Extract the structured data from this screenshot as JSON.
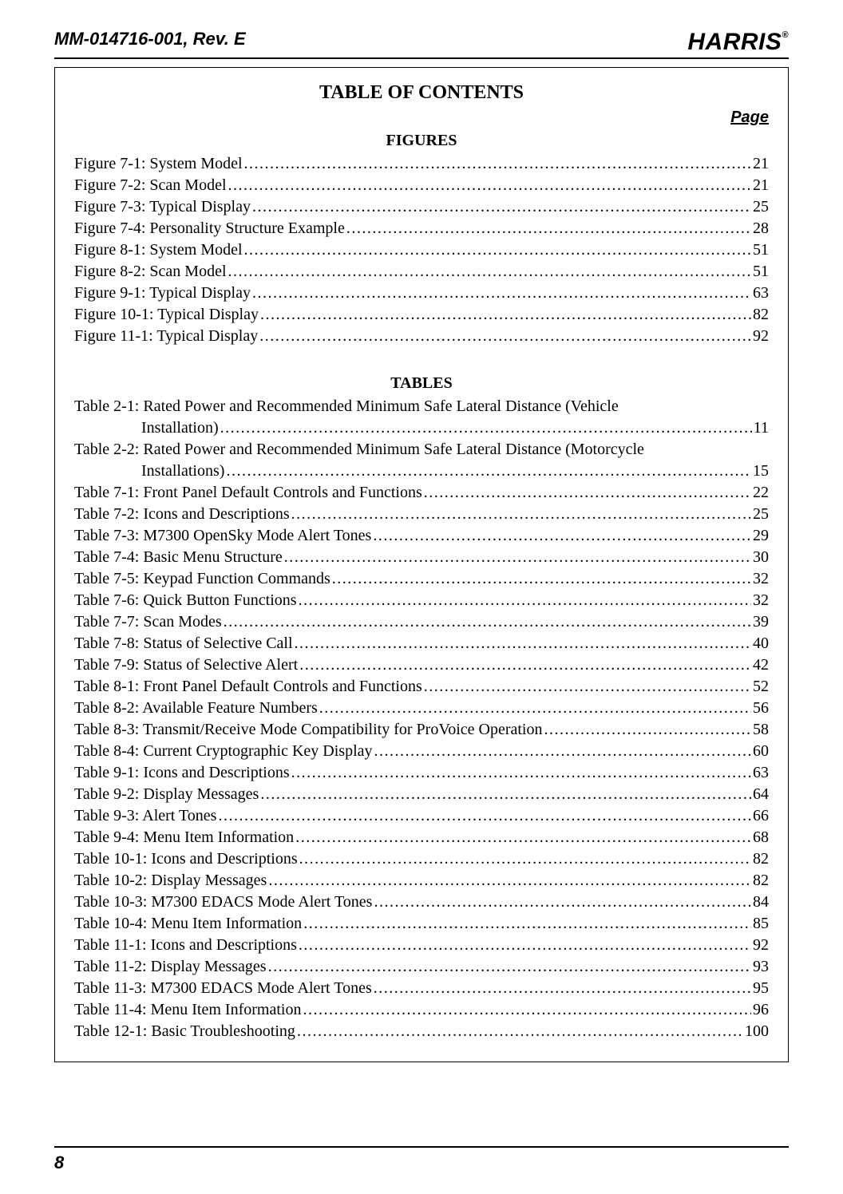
{
  "header": {
    "doc_id": "MM-014716-001, Rev. E",
    "logo_text": "HARRIS",
    "logo_reg": "®"
  },
  "toc": {
    "title": "TABLE OF CONTENTS",
    "page_label": "Page",
    "figures_title": "FIGURES",
    "tables_title": "TABLES",
    "figures": [
      {
        "label": "Figure 7-1: System Model",
        "page": "21"
      },
      {
        "label": "Figure 7-2: Scan Model",
        "page": "21"
      },
      {
        "label": "Figure 7-3: Typical Display",
        "page": "25"
      },
      {
        "label": "Figure 7-4: Personality Structure Example",
        "page": "28"
      },
      {
        "label": "Figure 8-1: System Model",
        "page": "51"
      },
      {
        "label": "Figure 8-2: Scan Model",
        "page": "51"
      },
      {
        "label": "Figure 9-1: Typical Display",
        "page": "63"
      },
      {
        "label": "Figure 10-1: Typical Display",
        "page": "82"
      },
      {
        "label": "Figure 11-1: Typical Display",
        "page": "92"
      }
    ],
    "tables_wrapped": [
      {
        "line1": "Table 2-1: Rated Power and Recommended Minimum Safe Lateral Distance (Vehicle",
        "line2_label": "Installation)",
        "page": "11"
      },
      {
        "line1": "Table 2-2: Rated Power and Recommended Minimum Safe Lateral Distance (Motorcycle",
        "line2_label": "Installations)",
        "page": "15"
      }
    ],
    "tables": [
      {
        "label": "Table 7-1: Front Panel Default Controls and Functions",
        "page": "22"
      },
      {
        "label": "Table 7-2: Icons and Descriptions",
        "page": "25"
      },
      {
        "label": "Table 7-3: M7300 OpenSky Mode Alert Tones",
        "page": "29"
      },
      {
        "label": "Table 7-4: Basic Menu Structure",
        "page": "30"
      },
      {
        "label": "Table 7-5: Keypad Function Commands",
        "page": "32"
      },
      {
        "label": "Table 7-6: Quick Button Functions",
        "page": "32"
      },
      {
        "label": "Table 7-7: Scan Modes",
        "page": "39"
      },
      {
        "label": "Table 7-8: Status of Selective Call",
        "page": "40"
      },
      {
        "label": "Table 7-9: Status of Selective Alert",
        "page": "42"
      },
      {
        "label": "Table 8-1: Front Panel Default Controls and Functions",
        "page": "52"
      },
      {
        "label": "Table 8-2: Available Feature Numbers",
        "page": "56"
      },
      {
        "label": "Table 8-3:  Transmit/Receive Mode Compatibility for ProVoice Operation",
        "page": "58"
      },
      {
        "label": "Table 8-4: Current Cryptographic Key Display",
        "page": "60"
      },
      {
        "label": "Table 9-1: Icons and Descriptions",
        "page": "63"
      },
      {
        "label": "Table 9-2: Display Messages",
        "page": "64"
      },
      {
        "label": "Table 9-3: Alert Tones",
        "page": "66"
      },
      {
        "label": "Table 9-4: Menu Item Information",
        "page": "68"
      },
      {
        "label": "Table 10-1: Icons and Descriptions",
        "page": "82"
      },
      {
        "label": "Table 10-2: Display Messages",
        "page": "82"
      },
      {
        "label": "Table 10-3: M7300 EDACS Mode Alert Tones",
        "page": "84"
      },
      {
        "label": "Table 10-4: Menu Item Information",
        "page": "85"
      },
      {
        "label": "Table 11-1: Icons and Descriptions",
        "page": "92"
      },
      {
        "label": "Table 11-2: Display Messages",
        "page": "93"
      },
      {
        "label": "Table 11-3: M7300 EDACS Mode Alert Tones",
        "page": "95"
      },
      {
        "label": "Table 11-4: Menu Item Information",
        "page": "96"
      },
      {
        "label": "Table 12-1: Basic Troubleshooting",
        "page": "100"
      }
    ]
  },
  "footer": {
    "page_number": "8"
  }
}
